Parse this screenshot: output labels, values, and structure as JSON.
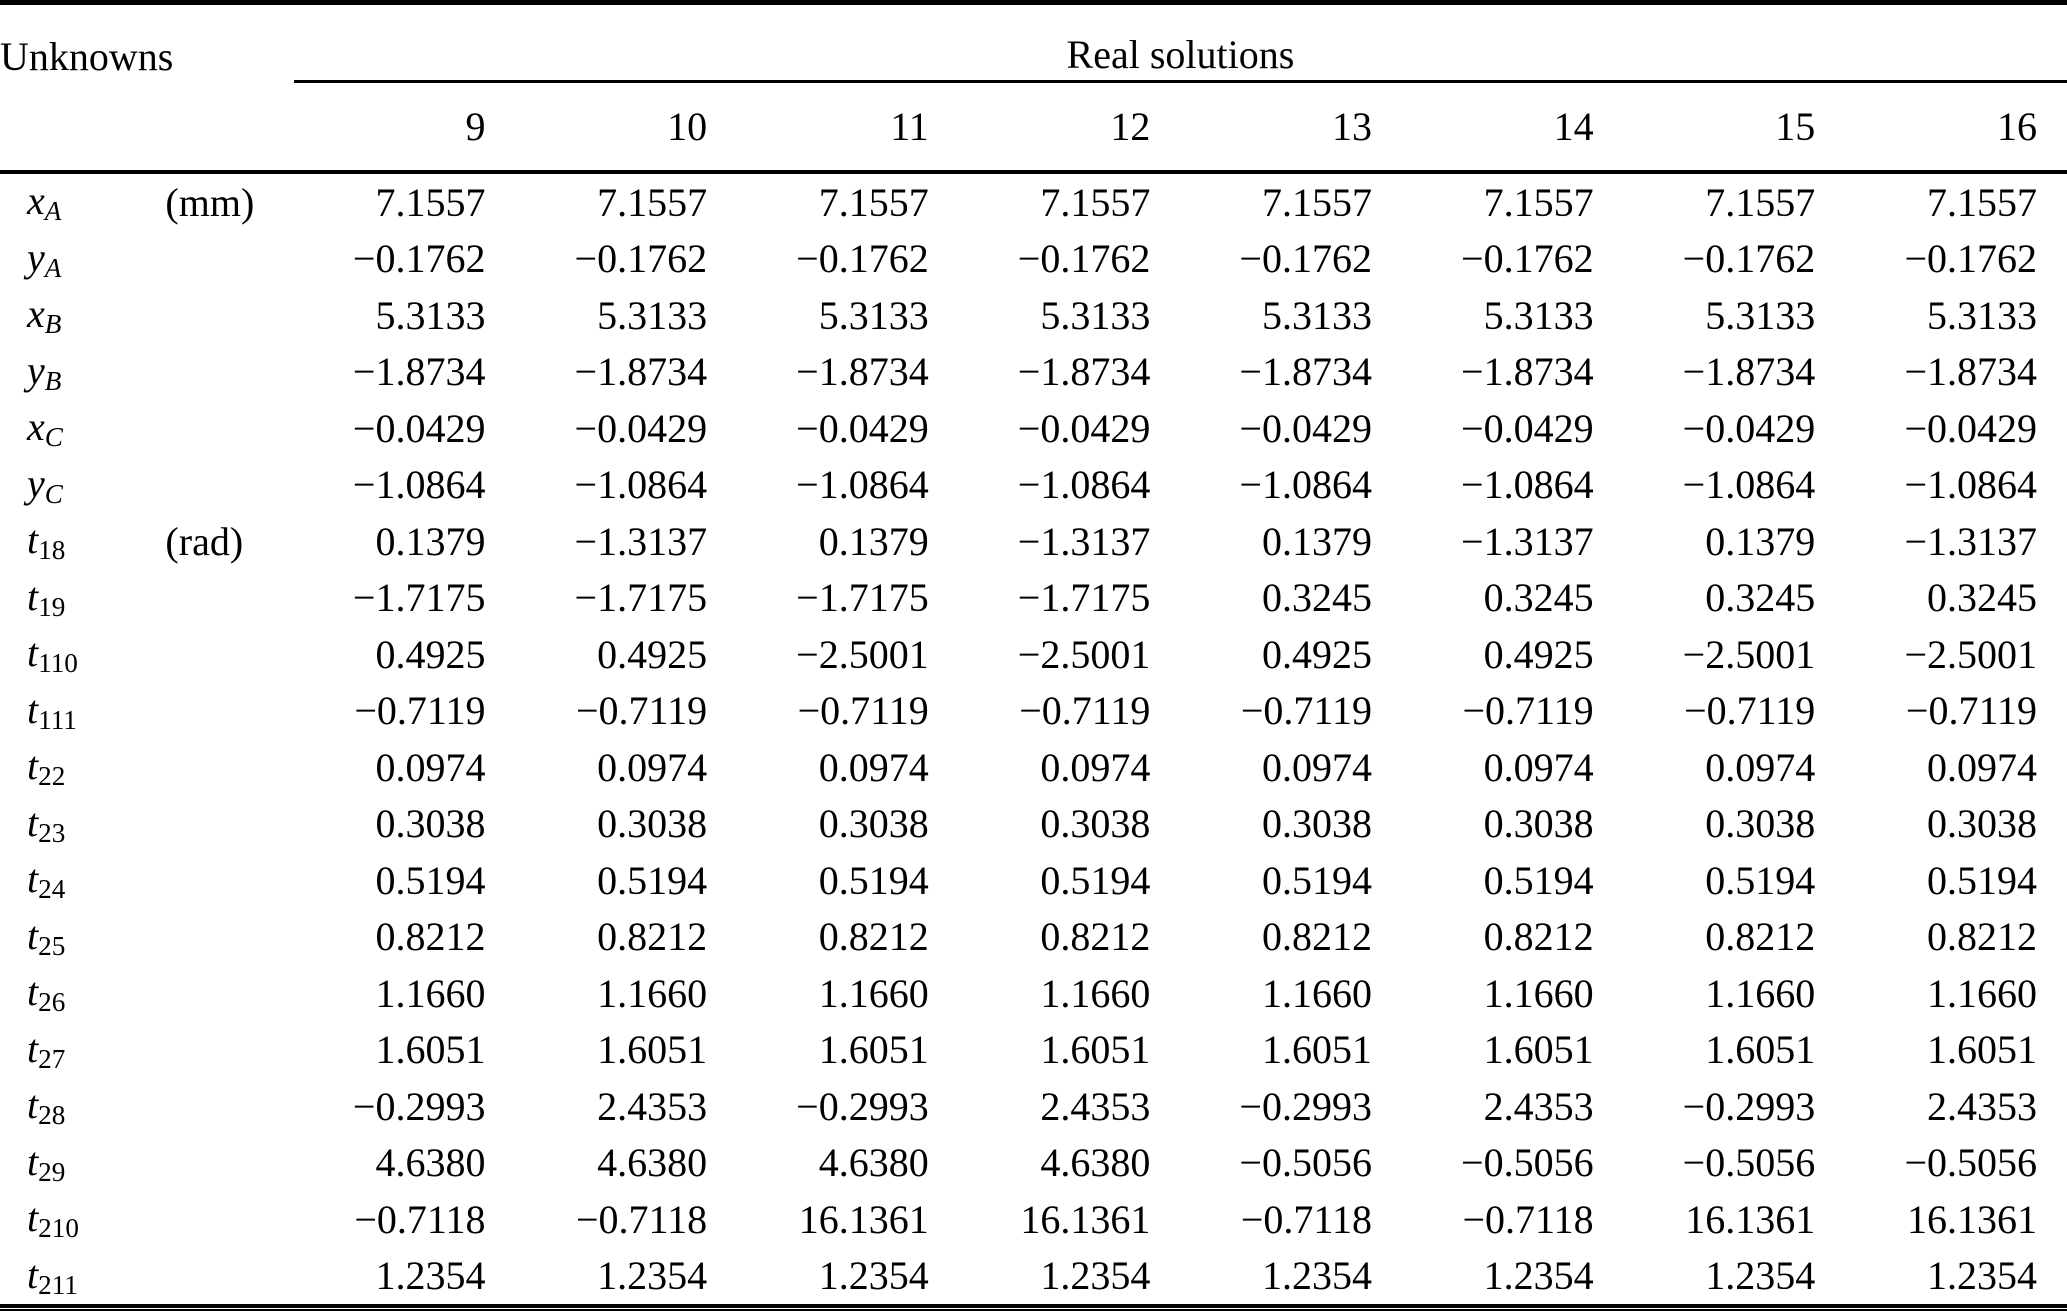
{
  "colors": {
    "background": "#ffffff",
    "text": "#000000",
    "rule": "#000000"
  },
  "table": {
    "row_header_title": "Unknowns",
    "group_header": "Real solutions",
    "columns": [
      "9",
      "10",
      "11",
      "12",
      "13",
      "14",
      "15",
      "16"
    ],
    "rows": [
      {
        "variable": "x",
        "subscript": "A",
        "unit": "(mm)",
        "values": [
          "7.1557",
          "7.1557",
          "7.1557",
          "7.1557",
          "7.1557",
          "7.1557",
          "7.1557",
          "7.1557"
        ]
      },
      {
        "variable": "y",
        "subscript": "A",
        "unit": "",
        "values": [
          "−0.1762",
          "−0.1762",
          "−0.1762",
          "−0.1762",
          "−0.1762",
          "−0.1762",
          "−0.1762",
          "−0.1762"
        ]
      },
      {
        "variable": "x",
        "subscript": "B",
        "unit": "",
        "values": [
          "5.3133",
          "5.3133",
          "5.3133",
          "5.3133",
          "5.3133",
          "5.3133",
          "5.3133",
          "5.3133"
        ]
      },
      {
        "variable": "y",
        "subscript": "B",
        "unit": "",
        "values": [
          "−1.8734",
          "−1.8734",
          "−1.8734",
          "−1.8734",
          "−1.8734",
          "−1.8734",
          "−1.8734",
          "−1.8734"
        ]
      },
      {
        "variable": "x",
        "subscript": "C",
        "unit": "",
        "values": [
          "−0.0429",
          "−0.0429",
          "−0.0429",
          "−0.0429",
          "−0.0429",
          "−0.0429",
          "−0.0429",
          "−0.0429"
        ]
      },
      {
        "variable": "y",
        "subscript": "C",
        "unit": "",
        "values": [
          "−1.0864",
          "−1.0864",
          "−1.0864",
          "−1.0864",
          "−1.0864",
          "−1.0864",
          "−1.0864",
          "−1.0864"
        ]
      },
      {
        "variable": "t",
        "subscript": "18",
        "unit": "(rad)",
        "values": [
          "0.1379",
          "−1.3137",
          "0.1379",
          "−1.3137",
          "0.1379",
          "−1.3137",
          "0.1379",
          "−1.3137"
        ]
      },
      {
        "variable": "t",
        "subscript": "19",
        "unit": "",
        "values": [
          "−1.7175",
          "−1.7175",
          "−1.7175",
          "−1.7175",
          "0.3245",
          "0.3245",
          "0.3245",
          "0.3245"
        ]
      },
      {
        "variable": "t",
        "subscript": "110",
        "unit": "",
        "values": [
          "0.4925",
          "0.4925",
          "−2.5001",
          "−2.5001",
          "0.4925",
          "0.4925",
          "−2.5001",
          "−2.5001"
        ]
      },
      {
        "variable": "t",
        "subscript": "111",
        "unit": "",
        "values": [
          "−0.7119",
          "−0.7119",
          "−0.7119",
          "−0.7119",
          "−0.7119",
          "−0.7119",
          "−0.7119",
          "−0.7119"
        ]
      },
      {
        "variable": "t",
        "subscript": "22",
        "unit": "",
        "values": [
          "0.0974",
          "0.0974",
          "0.0974",
          "0.0974",
          "0.0974",
          "0.0974",
          "0.0974",
          "0.0974"
        ]
      },
      {
        "variable": "t",
        "subscript": "23",
        "unit": "",
        "values": [
          "0.3038",
          "0.3038",
          "0.3038",
          "0.3038",
          "0.3038",
          "0.3038",
          "0.3038",
          "0.3038"
        ]
      },
      {
        "variable": "t",
        "subscript": "24",
        "unit": "",
        "values": [
          "0.5194",
          "0.5194",
          "0.5194",
          "0.5194",
          "0.5194",
          "0.5194",
          "0.5194",
          "0.5194"
        ]
      },
      {
        "variable": "t",
        "subscript": "25",
        "unit": "",
        "values": [
          "0.8212",
          "0.8212",
          "0.8212",
          "0.8212",
          "0.8212",
          "0.8212",
          "0.8212",
          "0.8212"
        ]
      },
      {
        "variable": "t",
        "subscript": "26",
        "unit": "",
        "values": [
          "1.1660",
          "1.1660",
          "1.1660",
          "1.1660",
          "1.1660",
          "1.1660",
          "1.1660",
          "1.1660"
        ]
      },
      {
        "variable": "t",
        "subscript": "27",
        "unit": "",
        "values": [
          "1.6051",
          "1.6051",
          "1.6051",
          "1.6051",
          "1.6051",
          "1.6051",
          "1.6051",
          "1.6051"
        ]
      },
      {
        "variable": "t",
        "subscript": "28",
        "unit": "",
        "values": [
          "−0.2993",
          "2.4353",
          "−0.2993",
          "2.4353",
          "−0.2993",
          "2.4353",
          "−0.2993",
          "2.4353"
        ]
      },
      {
        "variable": "t",
        "subscript": "29",
        "unit": "",
        "values": [
          "4.6380",
          "4.6380",
          "4.6380",
          "4.6380",
          "−0.5056",
          "−0.5056",
          "−0.5056",
          "−0.5056"
        ]
      },
      {
        "variable": "t",
        "subscript": "210",
        "unit": "",
        "values": [
          "−0.7118",
          "−0.7118",
          "16.1361",
          "16.1361",
          "−0.7118",
          "−0.7118",
          "16.1361",
          "16.1361"
        ]
      },
      {
        "variable": "t",
        "subscript": "211",
        "unit": "",
        "values": [
          "1.2354",
          "1.2354",
          "1.2354",
          "1.2354",
          "1.2354",
          "1.2354",
          "1.2354",
          "1.2354"
        ]
      }
    ]
  }
}
